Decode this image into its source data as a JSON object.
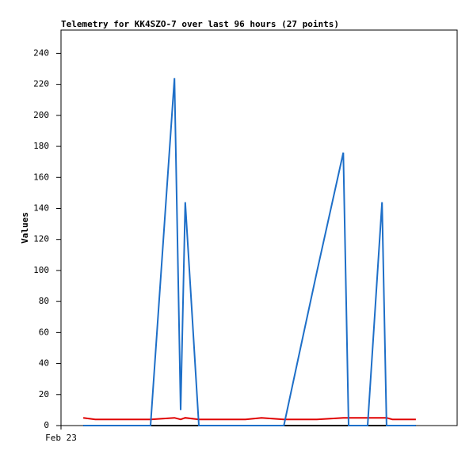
{
  "chart_data": {
    "type": "line",
    "title": "Telemetry for KK4SZO-7 over last 96 hours (27 points)",
    "y_label": "Values",
    "x": [
      5.4,
      8.3,
      12.1,
      15.9,
      21.7,
      27.5,
      29.0,
      30.1,
      33.4,
      37.1,
      40.9,
      44.7,
      48.6,
      54.0,
      58.2,
      62.0,
      68.4,
      69.7,
      74.3,
      77.8,
      78.9,
      80.3,
      82.2,
      84.1,
      85.1,
      85.4,
      86.0
    ],
    "xlim": [
      0,
      96
    ],
    "xticks": [
      {
        "value": 0,
        "label": "Feb 23"
      }
    ],
    "ylim": [
      0,
      255
    ],
    "yticks": [
      0,
      20,
      40,
      60,
      80,
      100,
      120,
      140,
      160,
      180,
      200,
      220,
      240
    ],
    "grid": false,
    "series": [
      {
        "color": "#000000",
        "values": [
          0,
          0,
          0,
          0,
          0,
          0,
          0,
          0,
          0,
          0,
          0,
          0,
          0,
          0,
          0,
          0,
          0,
          0,
          0,
          0,
          0,
          0,
          0,
          0,
          0,
          0,
          0
        ]
      },
      {
        "color": "#e00000",
        "values": [
          5,
          4,
          4,
          4,
          4,
          5,
          4,
          5,
          4,
          4,
          4,
          4,
          5,
          4,
          4,
          4,
          5,
          5,
          5,
          5,
          5,
          4,
          4,
          4,
          4,
          4,
          4
        ]
      },
      {
        "color": "#1e6fc8",
        "values": [
          0,
          0,
          0,
          0,
          0,
          224,
          10,
          144,
          0,
          0,
          0,
          0,
          0,
          0,
          52,
          99,
          176,
          0,
          0,
          144,
          0,
          0,
          0,
          0,
          0,
          0,
          0
        ]
      }
    ]
  }
}
